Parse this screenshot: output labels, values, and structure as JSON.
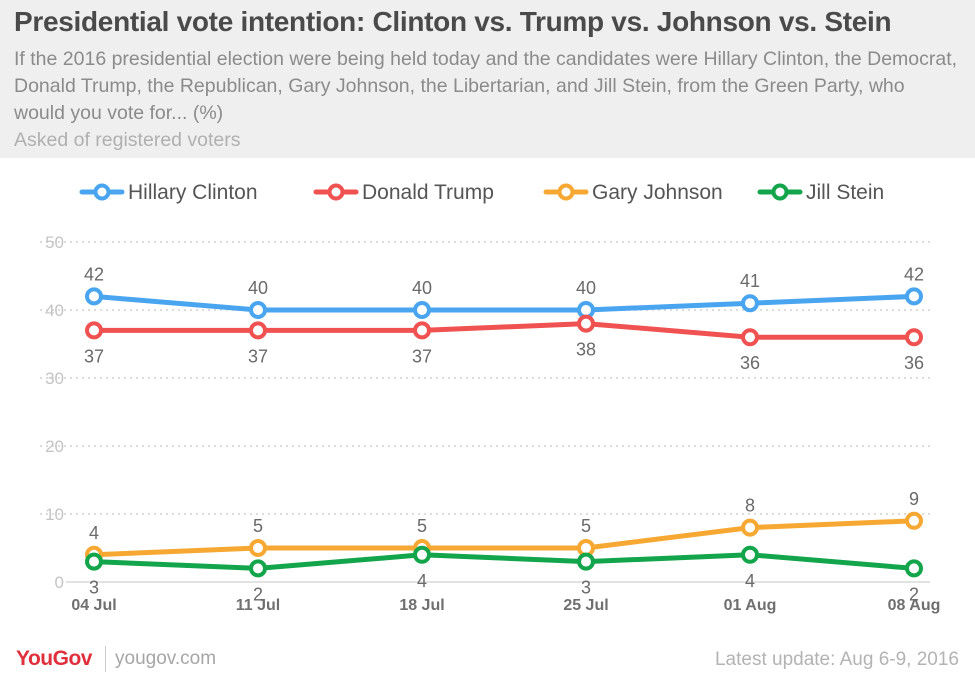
{
  "header": {
    "title": "Presidential vote intention: Clinton vs. Trump vs. Johnson vs. Stein",
    "subtitle": "If the 2016 presidential election were being held today and the candidates were Hillary Clinton, the Democrat, Donald Trump, the Republican, Gary Johnson, the Libertarian, and Jill Stein, from the Green Party, who would you vote for... (%)",
    "note": "Asked of registered voters"
  },
  "footer": {
    "brand": "YouGov",
    "url": "yougov.com",
    "update": "Latest update: Aug 6-9, 2016"
  },
  "chart_data": {
    "type": "line",
    "x": [
      "04 Jul",
      "11 Jul",
      "18 Jul",
      "25 Jul",
      "01 Aug",
      "08 Aug"
    ],
    "ylim": [
      0,
      50
    ],
    "yticks": [
      0,
      10,
      20,
      30,
      40,
      50
    ],
    "grid": true,
    "legend_position": "top",
    "series": [
      {
        "name": "Hillary Clinton",
        "color": "#4aa5f0",
        "values": [
          42,
          40,
          40,
          40,
          41,
          42
        ],
        "label_side": "above"
      },
      {
        "name": "Donald Trump",
        "color": "#f05252",
        "values": [
          37,
          37,
          37,
          38,
          36,
          36
        ],
        "label_side": "below"
      },
      {
        "name": "Gary Johnson",
        "color": "#f6a833",
        "values": [
          4,
          5,
          5,
          5,
          8,
          9
        ],
        "label_side": "above"
      },
      {
        "name": "Jill Stein",
        "color": "#13a54b",
        "values": [
          3,
          2,
          4,
          3,
          4,
          2
        ],
        "label_side": "below"
      }
    ]
  }
}
